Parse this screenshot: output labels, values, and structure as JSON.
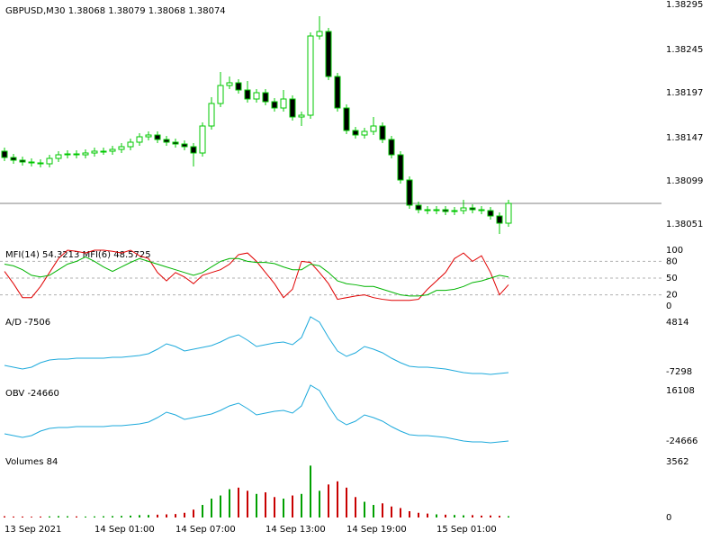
{
  "chart_data": [
    {
      "type": "candlestick",
      "title": "GBPUSD,M30 1.38068 1.38079 1.38068 1.38074",
      "categories": [
        "13 Sep 2021",
        null,
        null,
        null,
        null,
        null,
        null,
        null,
        null,
        null,
        "14 Sep 01:00",
        null,
        null,
        null,
        null,
        null,
        null,
        null,
        null,
        "14 Sep 07:00",
        null,
        null,
        null,
        null,
        null,
        null,
        null,
        null,
        null,
        "14 Sep 13:00",
        null,
        null,
        null,
        null,
        null,
        null,
        null,
        null,
        "14 Sep 19:00",
        null,
        null,
        null,
        null,
        null,
        null,
        null,
        null,
        null,
        "15 Sep 01:00",
        null,
        null,
        null,
        null,
        null,
        null,
        null,
        null
      ],
      "open": [
        1.38132,
        1.38125,
        1.38122,
        1.3812,
        1.38119,
        1.38118,
        1.38124,
        1.38128,
        1.38129,
        1.38128,
        1.3813,
        1.38132,
        1.38132,
        1.38134,
        1.38137,
        1.38142,
        1.38148,
        1.3815,
        1.38145,
        1.38142,
        1.3814,
        1.38137,
        1.3813,
        1.3816,
        1.38185,
        1.38205,
        1.38208,
        1.382,
        1.3819,
        1.38197,
        1.38187,
        1.3818,
        1.3819,
        1.3817,
        1.38172,
        1.3826,
        1.38265,
        1.38215,
        1.3818,
        1.38155,
        1.3815,
        1.38154,
        1.3816,
        1.38145,
        1.38128,
        1.381,
        1.38072,
        1.38067,
        1.38066,
        1.38067,
        1.38065,
        1.38066,
        1.38069,
        1.38067,
        1.38066,
        1.3806,
        1.38052
      ],
      "high": [
        1.38136,
        1.38129,
        1.38126,
        1.38124,
        1.38123,
        1.38128,
        1.38132,
        1.38133,
        1.38133,
        1.38134,
        1.38136,
        1.38136,
        1.38138,
        1.38141,
        1.38146,
        1.38152,
        1.38154,
        1.38154,
        1.38149,
        1.38146,
        1.38144,
        1.38141,
        1.38164,
        1.38192,
        1.3822,
        1.38215,
        1.38212,
        1.3821,
        1.38201,
        1.38201,
        1.38191,
        1.382,
        1.38194,
        1.38176,
        1.38264,
        1.38282,
        1.38269,
        1.38219,
        1.38184,
        1.38159,
        1.38158,
        1.3817,
        1.38164,
        1.38149,
        1.38132,
        1.38104,
        1.38076,
        1.38071,
        1.38071,
        1.38071,
        1.3807,
        1.38078,
        1.38073,
        1.38071,
        1.3807,
        1.38064,
        1.38078
      ],
      "low": [
        1.38121,
        1.38118,
        1.38116,
        1.38115,
        1.38114,
        1.38114,
        1.3812,
        1.38124,
        1.38124,
        1.38124,
        1.38126,
        1.38128,
        1.38128,
        1.3813,
        1.38133,
        1.38138,
        1.38144,
        1.38141,
        1.38138,
        1.38136,
        1.38133,
        1.38115,
        1.38126,
        1.38156,
        1.38181,
        1.38201,
        1.38196,
        1.38186,
        1.38186,
        1.38183,
        1.38176,
        1.38176,
        1.38166,
        1.3816,
        1.38168,
        1.38256,
        1.38211,
        1.38176,
        1.38151,
        1.38146,
        1.38146,
        1.3815,
        1.38141,
        1.38124,
        1.38096,
        1.38068,
        1.38063,
        1.38062,
        1.38062,
        1.38061,
        1.38061,
        1.38062,
        1.38063,
        1.38062,
        1.38056,
        1.3804,
        1.38048
      ],
      "close": [
        1.38125,
        1.38122,
        1.3812,
        1.38119,
        1.38118,
        1.38124,
        1.38128,
        1.38129,
        1.38128,
        1.3813,
        1.38132,
        1.38132,
        1.38134,
        1.38137,
        1.38142,
        1.38148,
        1.3815,
        1.38145,
        1.38142,
        1.3814,
        1.38137,
        1.3813,
        1.3816,
        1.38185,
        1.38205,
        1.38208,
        1.382,
        1.3819,
        1.38197,
        1.38187,
        1.3818,
        1.3819,
        1.3817,
        1.38172,
        1.3826,
        1.38265,
        1.38215,
        1.3818,
        1.38155,
        1.3815,
        1.38154,
        1.3816,
        1.38145,
        1.38128,
        1.381,
        1.38072,
        1.38067,
        1.38066,
        1.38067,
        1.38065,
        1.38066,
        1.38069,
        1.38067,
        1.38066,
        1.3806,
        1.38052,
        1.38074
      ],
      "color": "#00c800",
      "last_price": 1.38074,
      "last_price_color": "#808080",
      "ylim": [
        1.38028,
        1.383
      ],
      "yticks": [
        1.38295,
        1.38245,
        1.38197,
        1.38147,
        1.38099,
        1.38051
      ]
    },
    {
      "type": "line",
      "title": "MFI(14) 54.3213 MFI(6) 48.5725",
      "series": [
        {
          "name": "MFI(6)",
          "color": "#e00000",
          "values": [
            62,
            40,
            15,
            15,
            35,
            60,
            85,
            100,
            98,
            95,
            100,
            100,
            98,
            95,
            100,
            90,
            85,
            60,
            45,
            60,
            52,
            40,
            55,
            60,
            65,
            75,
            92,
            95,
            80,
            60,
            40,
            15,
            30,
            80,
            78,
            60,
            40,
            12,
            15,
            18,
            20,
            15,
            12,
            10,
            10,
            10,
            12,
            30,
            45,
            60,
            85,
            95,
            80,
            90,
            60,
            20,
            38
          ]
        },
        {
          "name": "MFI(14)",
          "color": "#00b400",
          "values": [
            75,
            72,
            65,
            55,
            52,
            55,
            65,
            75,
            80,
            88,
            80,
            70,
            62,
            70,
            78,
            85,
            80,
            75,
            70,
            65,
            60,
            55,
            60,
            70,
            80,
            85,
            85,
            80,
            78,
            78,
            76,
            70,
            65,
            65,
            75,
            72,
            60,
            45,
            40,
            38,
            35,
            35,
            30,
            25,
            20,
            18,
            18,
            20,
            28,
            28,
            30,
            35,
            42,
            45,
            50,
            55,
            52
          ]
        }
      ],
      "ylim": [
        0,
        100
      ],
      "yticks": [
        100,
        80,
        50,
        20,
        0
      ],
      "levels": [
        80,
        50,
        20
      ]
    },
    {
      "type": "line",
      "title": "A/D -7506",
      "series": [
        {
          "color": "#1eaadc",
          "values": [
            -5746,
            -6186,
            -6626,
            -6186,
            -5086,
            -4426,
            -4206,
            -4206,
            -3986,
            -3986,
            -3986,
            -3986,
            -3766,
            -3766,
            -3546,
            -3326,
            -2886,
            -1786,
            -466,
            -1126,
            -2226,
            -1786,
            -1346,
            -906,
            -26,
            1074,
            1734,
            414,
            -1126,
            -686,
            -246,
            -26,
            -686,
            1074,
            6134,
            4814,
            1074,
            -2226,
            -3546,
            -2666,
            -1126,
            -1786,
            -2666,
            -3986,
            -5086,
            -5966,
            -6186,
            -6186,
            -6406,
            -6626,
            -7066,
            -7506,
            -7726,
            -7726,
            -7946,
            -7726,
            -7506
          ]
        }
      ],
      "ylim": [
        -9926,
        6574
      ],
      "yticks": [
        4814,
        -7298
      ]
    },
    {
      "type": "line",
      "title": "OBV -24660",
      "series": [
        {
          "color": "#1eaadc",
          "values": [
            -18836,
            -20292,
            -21748,
            -20292,
            -16652,
            -14468,
            -13740,
            -13740,
            -13012,
            -13012,
            -13012,
            -13012,
            -12284,
            -12284,
            -11556,
            -10828,
            -9372,
            -5732,
            -1364,
            -3548,
            -7188,
            -5732,
            -4276,
            -2820,
            92,
            3732,
            5916,
            1548,
            -3548,
            -2092,
            -636,
            92,
            -2092,
            3732,
            20476,
            16108,
            3732,
            -7188,
            -11556,
            -8644,
            -3548,
            -5732,
            -8644,
            -13012,
            -16652,
            -19564,
            -20292,
            -20292,
            -21020,
            -21748,
            -23204,
            -24660,
            -25388,
            -25388,
            -26116,
            -25388,
            -24660
          ]
        }
      ],
      "ylim": [
        -32668,
        21932
      ],
      "yticks": [
        16108,
        -24666
      ]
    },
    {
      "type": "bar",
      "title": "Volumes 84",
      "values": [
        80,
        60,
        60,
        50,
        60,
        70,
        90,
        80,
        70,
        60,
        70,
        80,
        90,
        100,
        120,
        150,
        160,
        180,
        200,
        220,
        300,
        500,
        800,
        1200,
        1400,
        1800,
        1900,
        1700,
        1500,
        1600,
        1300,
        1200,
        1400,
        1500,
        3300,
        1700,
        2100,
        2300,
        1900,
        1300,
        1000,
        800,
        900,
        700,
        600,
        400,
        300,
        250,
        200,
        180,
        160,
        140,
        150,
        120,
        130,
        110,
        84
      ],
      "up_color": "#00a000",
      "down_color": "#c80000",
      "ylim": [
        0,
        4007
      ],
      "yticks": [
        3562,
        0
      ]
    }
  ]
}
